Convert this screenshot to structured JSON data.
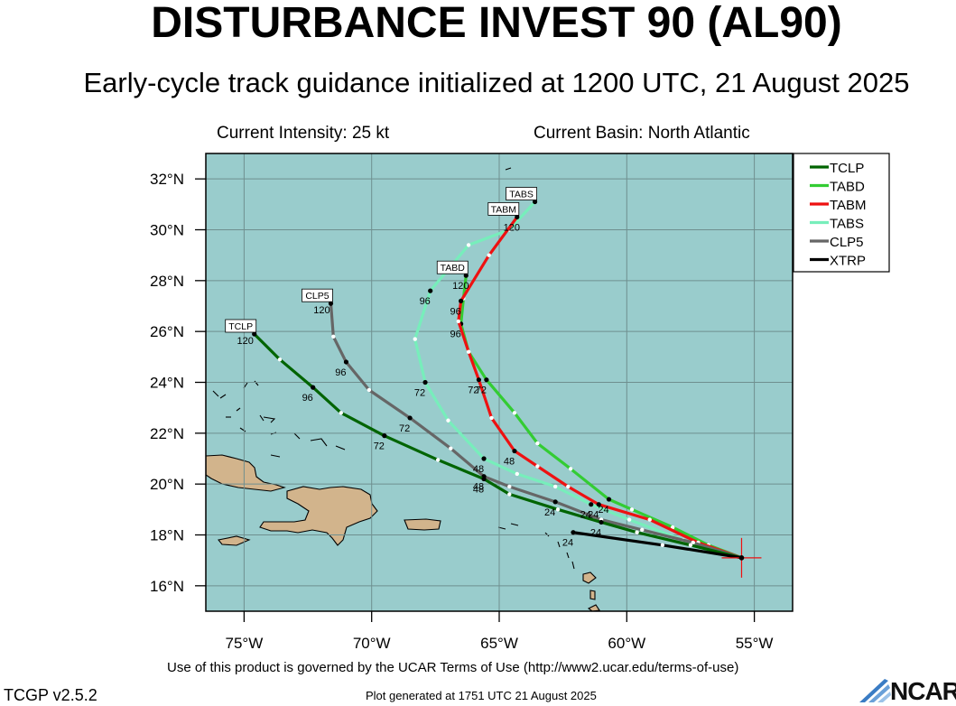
{
  "header": {
    "title": "DISTURBANCE INVEST 90 (AL90)",
    "subtitle": "Early-cycle track guidance initialized at 1200 UTC, 21 August 2025",
    "intensity": "Current Intensity: 25 kt",
    "basin": "Current Basin: North Atlantic"
  },
  "footer": {
    "terms": "Use of this product is governed by the UCAR Terms of Use (http://www2.ucar.edu/terms-of-use)",
    "version": "TCGP v2.5.2",
    "generated": "Plot generated at 1751 UTC   21 August 2025",
    "logo": "NCAR"
  },
  "colors": {
    "ocean": "#99CCCC",
    "land": "#D2B48C",
    "grid": "#6f8f8f"
  },
  "chart_data": {
    "type": "line",
    "title": "DISTURBANCE INVEST 90 (AL90)",
    "xlim": [
      -76.5,
      -53.5
    ],
    "ylim": [
      15,
      33
    ],
    "x_ticks": [
      -75,
      -70,
      -65,
      -60,
      -55
    ],
    "x_tick_labels": [
      "75°W",
      "70°W",
      "65°W",
      "60°W",
      "55°W"
    ],
    "y_ticks": [
      16,
      18,
      20,
      22,
      24,
      26,
      28,
      30,
      32
    ],
    "y_tick_labels": [
      "16°N",
      "18°N",
      "20°N",
      "22°N",
      "24°N",
      "26°N",
      "28°N",
      "30°N",
      "32°N"
    ],
    "grid": true,
    "legend_position": "right",
    "origin": {
      "lon": -55.5,
      "lat": 17.1
    },
    "series": [
      {
        "name": "TCLP",
        "color": "#006400",
        "end_label": "120",
        "points": [
          [
            -55.5,
            17.1
          ],
          [
            -57.5,
            17.6
          ],
          [
            -59.6,
            18.1
          ],
          [
            -61.0,
            18.5
          ],
          [
            -62.7,
            19.0
          ],
          [
            -64.6,
            19.6
          ],
          [
            -65.6,
            20.2
          ],
          [
            -67.4,
            20.95
          ],
          [
            -69.5,
            21.9
          ],
          [
            -71.2,
            22.8
          ],
          [
            -72.3,
            23.8
          ],
          [
            -73.6,
            24.9
          ],
          [
            -74.6,
            25.9
          ]
        ],
        "labels": [
          {
            "i": 3,
            "text": "24"
          },
          {
            "i": 6,
            "text": "48"
          },
          {
            "i": 8,
            "text": "72"
          },
          {
            "i": 10,
            "text": "96"
          }
        ]
      },
      {
        "name": "TABD",
        "color": "#33cc33",
        "end_label": "",
        "points": [
          [
            -55.5,
            17.1
          ],
          [
            -56.8,
            17.6
          ],
          [
            -58.2,
            18.3
          ],
          [
            -59.8,
            19.0
          ],
          [
            -60.7,
            19.4
          ],
          [
            -62.2,
            20.6
          ],
          [
            -63.5,
            21.6
          ],
          [
            -64.4,
            22.8
          ],
          [
            -65.5,
            24.1
          ],
          [
            -66.2,
            25.2
          ],
          [
            -66.5,
            26.3
          ],
          [
            -66.4,
            27.3
          ],
          [
            -66.3,
            28.2
          ]
        ],
        "labels": [
          {
            "i": 4,
            "text": "24"
          },
          {
            "i": 8,
            "text": "72"
          },
          {
            "i": 10,
            "text": "96"
          },
          {
            "i": 12,
            "text": "120"
          }
        ],
        "box": {
          "i": 12,
          "text": "TABD"
        }
      },
      {
        "name": "TABM",
        "color": "#ee1111",
        "end_label": "",
        "points": [
          [
            -55.5,
            17.1
          ],
          [
            -57.2,
            17.7
          ],
          [
            -59.1,
            18.6
          ],
          [
            -61.1,
            19.2
          ],
          [
            -62.3,
            19.9
          ],
          [
            -63.5,
            20.7
          ],
          [
            -64.4,
            21.3
          ],
          [
            -65.3,
            22.6
          ],
          [
            -65.8,
            24.1
          ],
          [
            -66.2,
            25.2
          ],
          [
            -66.6,
            26.4
          ],
          [
            -66.5,
            27.2
          ],
          [
            -65.4,
            29.0
          ],
          [
            -64.3,
            30.5
          ]
        ],
        "labels": [
          {
            "i": 3,
            "text": "24"
          },
          {
            "i": 6,
            "text": "48"
          },
          {
            "i": 8,
            "text": "72"
          },
          {
            "i": 11,
            "text": "96"
          },
          {
            "i": 13,
            "text": "120"
          }
        ],
        "box": {
          "i": 13,
          "text": "TABM"
        }
      },
      {
        "name": "TABS",
        "color": "#77eebb",
        "end_label": "",
        "points": [
          [
            -55.5,
            17.1
          ],
          [
            -57.8,
            17.8
          ],
          [
            -59.9,
            18.6
          ],
          [
            -61.4,
            19.2
          ],
          [
            -62.8,
            19.9
          ],
          [
            -64.3,
            20.4
          ],
          [
            -65.6,
            21.0
          ],
          [
            -67.0,
            22.5
          ],
          [
            -67.9,
            24.0
          ],
          [
            -68.3,
            25.7
          ],
          [
            -67.7,
            27.6
          ],
          [
            -66.2,
            29.4
          ],
          [
            -64.6,
            30.0
          ],
          [
            -63.6,
            31.1
          ]
        ],
        "labels": [
          {
            "i": 3,
            "text": "24"
          },
          {
            "i": 6,
            "text": "48"
          },
          {
            "i": 8,
            "text": "72"
          },
          {
            "i": 10,
            "text": "96"
          }
        ],
        "box": {
          "i": 13,
          "text": "TABS"
        }
      },
      {
        "name": "CLP5",
        "color": "#666666",
        "end_label": "120",
        "points": [
          [
            -55.5,
            17.1
          ],
          [
            -57.4,
            17.7
          ],
          [
            -59.4,
            18.2
          ],
          [
            -61.0,
            18.6
          ],
          [
            -62.8,
            19.3
          ],
          [
            -64.6,
            19.9
          ],
          [
            -65.6,
            20.3
          ],
          [
            -66.9,
            21.4
          ],
          [
            -68.5,
            22.6
          ],
          [
            -70.1,
            23.7
          ],
          [
            -71.0,
            24.8
          ],
          [
            -71.5,
            25.8
          ],
          [
            -71.6,
            27.1
          ]
        ],
        "labels": [
          {
            "i": 4,
            "text": "24"
          },
          {
            "i": 6,
            "text": "48"
          },
          {
            "i": 8,
            "text": "72"
          },
          {
            "i": 10,
            "text": "96"
          }
        ],
        "box": {
          "i": 12,
          "text": "CLP5"
        }
      },
      {
        "name": "XTRP",
        "color": "#000000",
        "end_label": "",
        "points": [
          [
            -55.5,
            17.1
          ],
          [
            -58.6,
            17.6
          ],
          [
            -62.1,
            18.1
          ]
        ],
        "labels": [
          {
            "i": 2,
            "text": "24"
          }
        ]
      }
    ]
  }
}
